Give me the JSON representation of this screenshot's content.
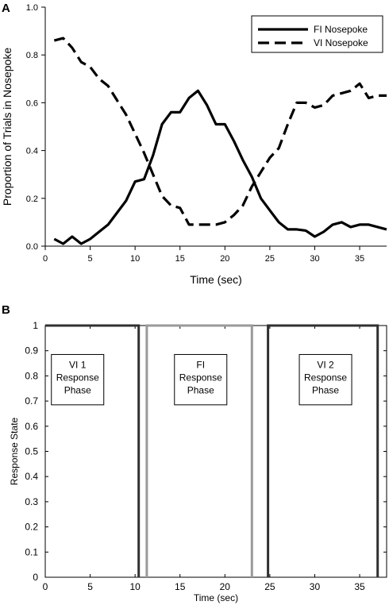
{
  "chart_data": [
    {
      "type": "line",
      "panel_label": "A",
      "xlabel": "Time (sec)",
      "ylabel": "Proportion of Trials in Nosepoke",
      "xlim": [
        0,
        38
      ],
      "ylim": [
        0,
        1.0
      ],
      "xticks": [
        "0",
        "5",
        "10",
        "15",
        "20",
        "25",
        "30",
        "35"
      ],
      "yticks": [
        "0.0",
        "0.2",
        "0.4",
        "0.6",
        "0.8",
        "1.0"
      ],
      "legend_position": "top-right",
      "grid": false,
      "series": [
        {
          "name": "FI Nosepoke",
          "style": "solid",
          "color": "#000000",
          "x": [
            1,
            2,
            3,
            4,
            5,
            6,
            7,
            8,
            9,
            10,
            11,
            12,
            13,
            14,
            15,
            16,
            17,
            18,
            19,
            20,
            21,
            22,
            23,
            24,
            25,
            26,
            27,
            28,
            29,
            30,
            31,
            32,
            33,
            34,
            35,
            36,
            37,
            38
          ],
          "y": [
            0.03,
            0.01,
            0.04,
            0.01,
            0.03,
            0.06,
            0.09,
            0.14,
            0.19,
            0.27,
            0.28,
            0.38,
            0.51,
            0.56,
            0.56,
            0.62,
            0.65,
            0.59,
            0.51,
            0.51,
            0.44,
            0.36,
            0.29,
            0.2,
            0.15,
            0.1,
            0.07,
            0.07,
            0.065,
            0.04,
            0.06,
            0.09,
            0.1,
            0.08,
            0.09,
            0.09,
            0.08,
            0.07
          ]
        },
        {
          "name": "VI Nosepoke",
          "style": "dashed",
          "color": "#000000",
          "x": [
            1,
            2,
            3,
            4,
            5,
            6,
            7,
            8,
            9,
            10,
            11,
            12,
            13,
            14,
            15,
            16,
            17,
            18,
            19,
            20,
            21,
            22,
            23,
            24,
            25,
            26,
            27,
            28,
            29,
            30,
            31,
            32,
            33,
            34,
            35,
            36,
            37,
            38
          ],
          "y": [
            0.86,
            0.87,
            0.83,
            0.77,
            0.75,
            0.7,
            0.67,
            0.61,
            0.55,
            0.47,
            0.39,
            0.3,
            0.21,
            0.17,
            0.16,
            0.09,
            0.09,
            0.09,
            0.09,
            0.1,
            0.13,
            0.17,
            0.25,
            0.31,
            0.37,
            0.41,
            0.51,
            0.6,
            0.6,
            0.58,
            0.59,
            0.63,
            0.64,
            0.65,
            0.68,
            0.62,
            0.63,
            0.63
          ]
        }
      ]
    },
    {
      "type": "line",
      "panel_label": "B",
      "xlabel": "Time (sec)",
      "ylabel": "Response State",
      "xlim": [
        0,
        38
      ],
      "ylim": [
        0,
        1
      ],
      "xticks": [
        "0",
        "5",
        "10",
        "15",
        "20",
        "25",
        "30",
        "35"
      ],
      "yticks": [
        "0",
        "0.1",
        "0.2",
        "0.3",
        "0.4",
        "0.5",
        "0.6",
        "0.7",
        "0.8",
        "0.9",
        "1"
      ],
      "grid": false,
      "series": [
        {
          "color": "#303030",
          "x": [
            0,
            10.4,
            10.4
          ],
          "y": [
            1,
            1,
            0
          ]
        },
        {
          "color": "#9a9a9a",
          "x": [
            11.3,
            11.3,
            23.0,
            23.0
          ],
          "y": [
            0,
            1,
            1,
            0
          ]
        },
        {
          "color": "#303030",
          "x": [
            24.8,
            24.8,
            37.0,
            37.0
          ],
          "y": [
            0,
            1,
            1,
            0
          ]
        }
      ],
      "phase_boxes": [
        {
          "lines": [
            "VI 1",
            "Response",
            "Phase"
          ]
        },
        {
          "lines": [
            "FI",
            "Response",
            "Phase"
          ]
        },
        {
          "lines": [
            "VI 2",
            "Response",
            "Phase"
          ]
        }
      ]
    }
  ]
}
